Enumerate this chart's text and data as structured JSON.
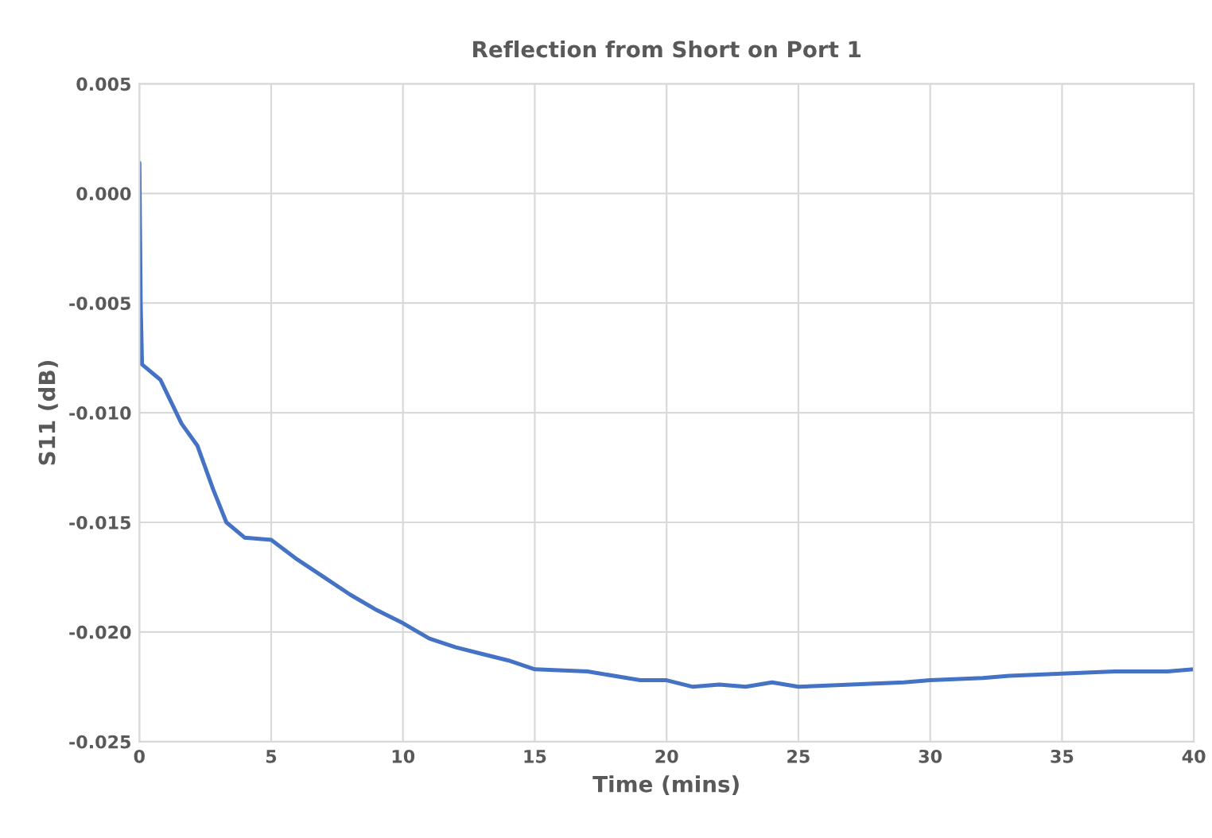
{
  "chart_data": {
    "type": "line",
    "title": "Reflection from Short on Port 1",
    "xlabel": "Time (mins)",
    "ylabel": "S11 (dB)",
    "series": [
      {
        "color": "#4472c4",
        "x": [
          0,
          0.05,
          0.1,
          0.3,
          0.8,
          1.2,
          1.6,
          2.2,
          2.8,
          3.3,
          4.0,
          5.0,
          6.0,
          7.0,
          8.0,
          9.0,
          10,
          11,
          12,
          13,
          14,
          15,
          17,
          19,
          20,
          21,
          22,
          23,
          24,
          25,
          27,
          29,
          30,
          32,
          33,
          35,
          37,
          39,
          40
        ],
        "values": [
          0.0014,
          -0.005,
          -0.0078,
          -0.008,
          -0.0085,
          -0.0095,
          -0.0105,
          -0.0115,
          -0.0135,
          -0.015,
          -0.0157,
          -0.0158,
          -0.0167,
          -0.0175,
          -0.0183,
          -0.019,
          -0.0196,
          -0.0203,
          -0.0207,
          -0.021,
          -0.0213,
          -0.0217,
          -0.0218,
          -0.0222,
          -0.0222,
          -0.0225,
          -0.0224,
          -0.0225,
          -0.0223,
          -0.0225,
          -0.0224,
          -0.0223,
          -0.0222,
          -0.0221,
          -0.022,
          -0.0219,
          -0.0218,
          -0.0218,
          -0.0217
        ]
      }
    ],
    "xlim": [
      0,
      40
    ],
    "xticks": [
      0,
      5,
      10,
      15,
      20,
      25,
      30,
      35,
      40
    ],
    "ylim": [
      -0.025,
      0.005
    ],
    "yticks": [
      {
        "value": -0.025,
        "label": "-0.025"
      },
      {
        "value": -0.02,
        "label": "-0.020"
      },
      {
        "value": -0.015,
        "label": "-0.015"
      },
      {
        "value": -0.01,
        "label": "-0.010"
      },
      {
        "value": -0.005,
        "label": "-0.005"
      },
      {
        "value": 0.0,
        "label": "0.000"
      },
      {
        "value": 0.005,
        "label": "0.005"
      }
    ],
    "grid": true,
    "marker": "none",
    "line_style": "solid"
  }
}
